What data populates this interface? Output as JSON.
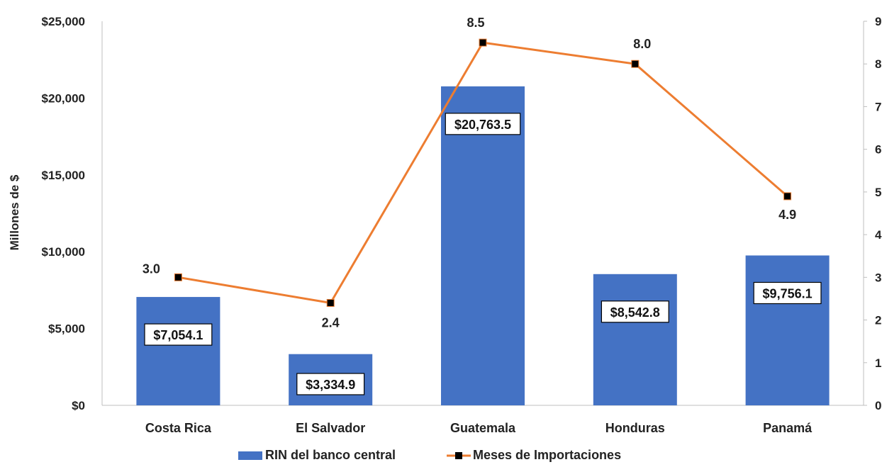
{
  "chart_data": {
    "type": "bar",
    "categories": [
      "Costa Rica",
      "El Salvador",
      "Guatemala",
      "Honduras",
      "Panamá"
    ],
    "series": [
      {
        "name": "RIN del banco central",
        "type": "bar",
        "axis": "left",
        "values": [
          7054.1,
          3334.9,
          20763.5,
          8542.8,
          9756.1
        ],
        "labels": [
          "$7,054.1",
          "$3,334.9",
          "$20,763.5",
          "$8,542.8",
          "$9,756.1"
        ],
        "color": "#4472C4"
      },
      {
        "name": "Meses de Importaciones",
        "type": "line",
        "axis": "right",
        "values": [
          3.0,
          2.4,
          8.5,
          8.0,
          4.9
        ],
        "labels": [
          "3.0",
          "2.4",
          "8.5",
          "8.0",
          "4.9"
        ],
        "color": "#ED7D31",
        "marker_color": "#000000"
      }
    ],
    "ylabel": "Millones de $",
    "ylim": [
      0,
      25000
    ],
    "y_ticks": [
      "$0",
      "$5,000",
      "$10,000",
      "$15,000",
      "$20,000",
      "$25,000"
    ],
    "y2lim": [
      0,
      9
    ],
    "y2_ticks": [
      "0",
      "1",
      "2",
      "3",
      "4",
      "5",
      "6",
      "7",
      "8",
      "9"
    ],
    "grid": false,
    "legend_position": "bottom"
  }
}
